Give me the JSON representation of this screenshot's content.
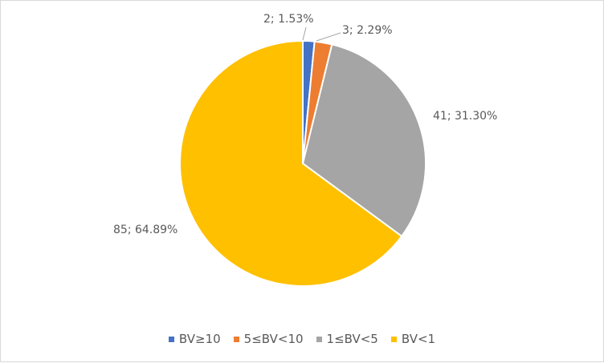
{
  "chart_data": {
    "type": "pie",
    "title": "",
    "categories": [
      "BV≥10",
      "5≤BV<10",
      "1≤BV<5",
      "BV<1"
    ],
    "values": [
      2,
      3,
      41,
      85
    ],
    "percent_labels": [
      "1.53%",
      "2.29%",
      "31.30%",
      "64.89%"
    ],
    "data_labels": [
      "2; 1.53%",
      "3; 2.29%",
      "41; 31.30%",
      "85; 64.89%"
    ],
    "colors": [
      "#4472C4",
      "#ED7D31",
      "#A5A5A5",
      "#FFC000"
    ],
    "legend_position": "bottom"
  }
}
